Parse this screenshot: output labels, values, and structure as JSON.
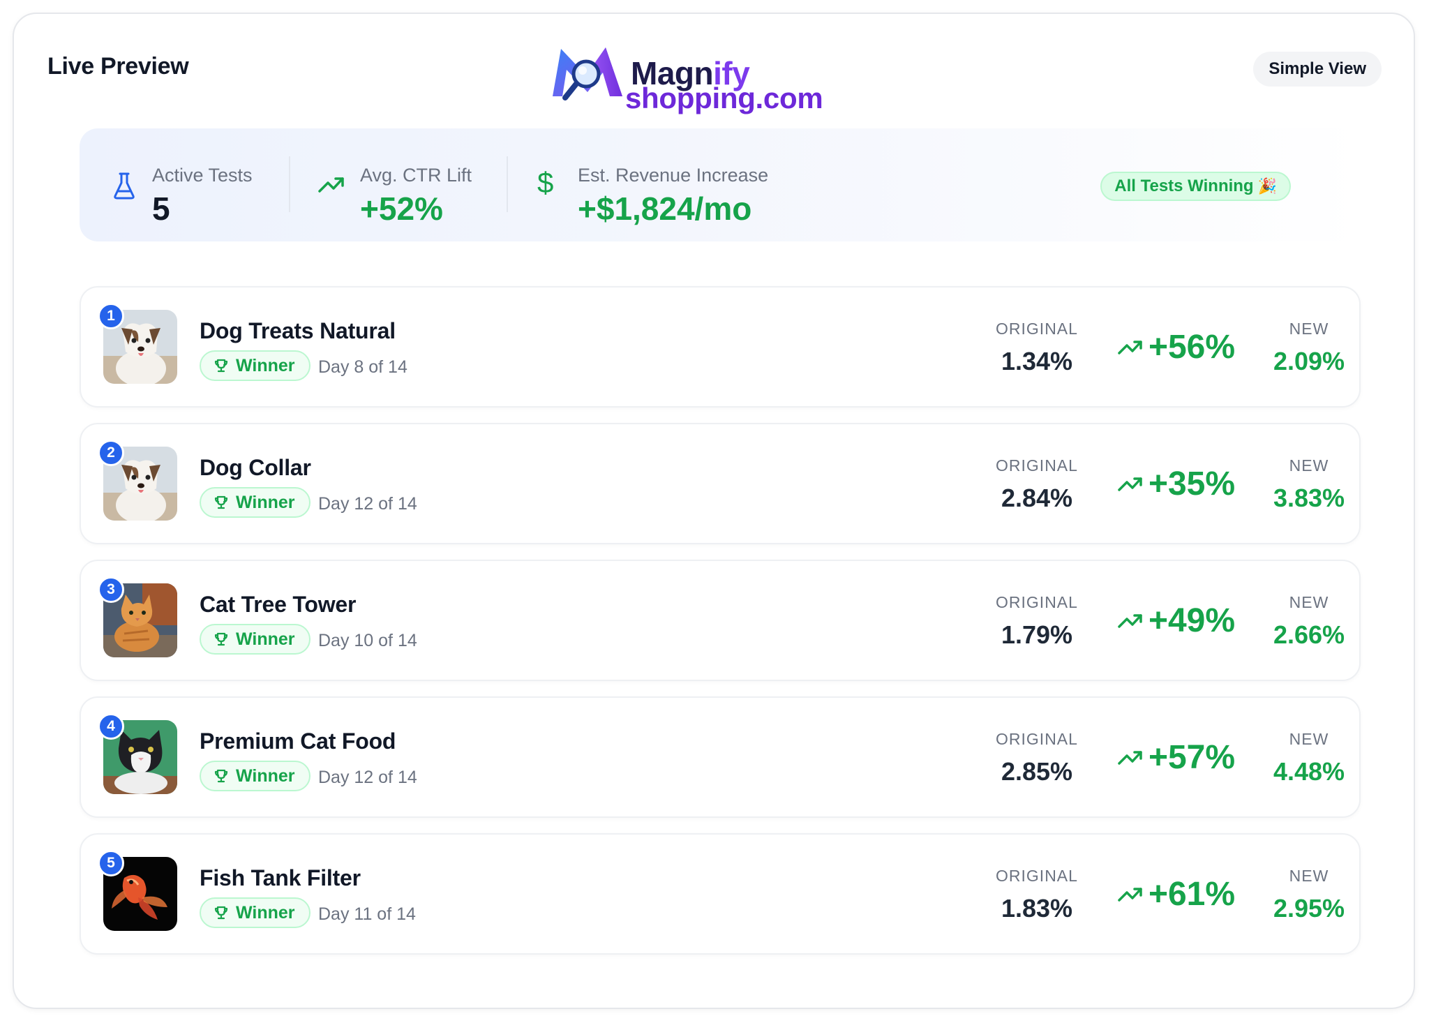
{
  "header": {
    "title": "Live Preview",
    "logo_line1_a": "Magn",
    "logo_line1_b": "ify",
    "logo_line2": "shopping.com",
    "simple_view_label": "Simple View"
  },
  "stats": {
    "active_tests": {
      "label": "Active Tests",
      "value": "5",
      "icon": "flask-icon"
    },
    "ctr_lift": {
      "label": "Avg. CTR Lift",
      "value": "+52%",
      "icon": "trending-up-icon"
    },
    "revenue": {
      "label": "Est. Revenue Increase",
      "value": "+$1,824/mo",
      "icon": "dollar-icon"
    },
    "badge": "All Tests Winning"
  },
  "tests": [
    {
      "rank": "1",
      "name": "Dog Treats Natural",
      "status": "Winner",
      "day": "Day 8 of 14",
      "original_label": "ORIGINAL",
      "original": "1.34%",
      "lift": "+56%",
      "new_label": "NEW",
      "new": "2.09%",
      "image": "dog"
    },
    {
      "rank": "2",
      "name": "Dog Collar",
      "status": "Winner",
      "day": "Day 12 of 14",
      "original_label": "ORIGINAL",
      "original": "2.84%",
      "lift": "+35%",
      "new_label": "NEW",
      "new": "3.83%",
      "image": "dog"
    },
    {
      "rank": "3",
      "name": "Cat Tree Tower",
      "status": "Winner",
      "day": "Day 10 of 14",
      "original_label": "ORIGINAL",
      "original": "1.79%",
      "lift": "+49%",
      "new_label": "NEW",
      "new": "2.66%",
      "image": "orange-cat"
    },
    {
      "rank": "4",
      "name": "Premium Cat Food",
      "status": "Winner",
      "day": "Day 12 of 14",
      "original_label": "ORIGINAL",
      "original": "2.85%",
      "lift": "+57%",
      "new_label": "NEW",
      "new": "4.48%",
      "image": "tuxedo-cat"
    },
    {
      "rank": "5",
      "name": "Fish Tank Filter",
      "status": "Winner",
      "day": "Day 11 of 14",
      "original_label": "ORIGINAL",
      "original": "1.83%",
      "lift": "+61%",
      "new_label": "NEW",
      "new": "2.95%",
      "image": "goldfish"
    }
  ],
  "colors": {
    "accent_green": "#16a34a",
    "rank_blue": "#2563eb",
    "logo_purple": "#6d28d9",
    "logo_navy": "#1e1b4b"
  }
}
